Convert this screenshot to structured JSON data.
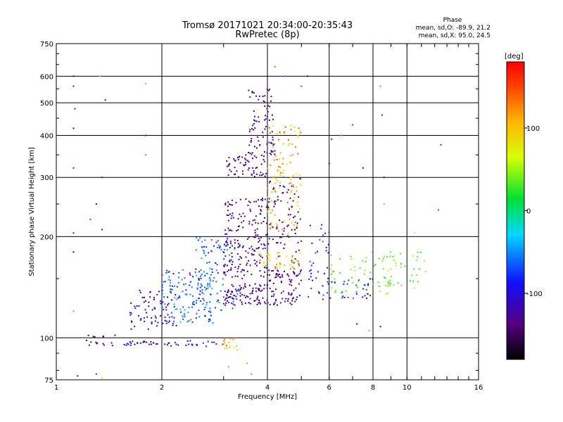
{
  "chart_data": {
    "type": "scatter",
    "title": "Tromsø 20171021 20:34:00-20:35:43",
    "subtitle": "RwPretec (8p)",
    "xlabel": "Frequency [MHz]",
    "ylabel": "Stationary phase Virtual Height [km]",
    "x_scale": "log",
    "y_scale": "log",
    "xlim": [
      1,
      16
    ],
    "ylim": [
      75,
      750
    ],
    "x_ticks": [
      1,
      2,
      4,
      6,
      8,
      10,
      16
    ],
    "x_tick_labels": [
      "1",
      "2",
      "4",
      "6",
      "8",
      "10",
      "16"
    ],
    "y_ticks": [
      75,
      100,
      200,
      300,
      400,
      500,
      600,
      750
    ],
    "y_tick_labels": [
      "75",
      "100",
      "200",
      "300",
      "400",
      "500",
      "600",
      "750"
    ],
    "grid": true,
    "stats": {
      "title": "Phase",
      "line1": "mean, sd,O: -89.9, 21.2",
      "line2": "mean, sd,X: 95.0, 24.5"
    },
    "colorbar": {
      "label": "[deg]",
      "range": [
        -180,
        180
      ],
      "ticks": [
        100,
        0,
        -100
      ],
      "tick_labels": [
        "100",
        "0",
        "-100"
      ]
    },
    "clusters": [
      {
        "x": [
          1.2,
          1.5
        ],
        "y": [
          94,
          102
        ],
        "phase": [
          -160,
          -70
        ],
        "n": 16
      },
      {
        "x": [
          1.55,
          1.95
        ],
        "y": [
          95,
          98
        ],
        "phase": [
          -130,
          -90
        ],
        "n": 24
      },
      {
        "x": [
          2.0,
          3.0
        ],
        "y": [
          94,
          98
        ],
        "phase": [
          -140,
          -70
        ],
        "n": 24
      },
      {
        "x": [
          3.0,
          3.3
        ],
        "y": [
          92,
          100
        ],
        "phase": [
          60,
          160
        ],
        "n": 16
      },
      {
        "x": [
          1.6,
          2.2
        ],
        "y": [
          105,
          140
        ],
        "phase": [
          -130,
          -90
        ],
        "n": 70
      },
      {
        "x": [
          2.0,
          2.8
        ],
        "y": [
          110,
          160
        ],
        "phase": [
          -90,
          -30
        ],
        "n": 140
      },
      {
        "x": [
          2.5,
          3.3
        ],
        "y": [
          120,
          200
        ],
        "phase": [
          -90,
          -40
        ],
        "n": 100
      },
      {
        "x": [
          3.0,
          4.0
        ],
        "y": [
          125,
          145
        ],
        "phase": [
          -150,
          -110
        ],
        "n": 90
      },
      {
        "x": [
          4.0,
          5.0
        ],
        "y": [
          125,
          160
        ],
        "phase": [
          -150,
          -110
        ],
        "n": 80
      },
      {
        "x": [
          3.0,
          4.0
        ],
        "y": [
          150,
          260
        ],
        "phase": [
          -150,
          -110
        ],
        "n": 180
      },
      {
        "x": [
          3.0,
          4.0
        ],
        "y": [
          300,
          350
        ],
        "phase": [
          -150,
          -110
        ],
        "n": 60
      },
      {
        "x": [
          3.5,
          4.2
        ],
        "y": [
          350,
          550
        ],
        "phase": [
          -150,
          -110
        ],
        "n": 80
      },
      {
        "x": [
          4.0,
          5.0
        ],
        "y": [
          200,
          430
        ],
        "phase": [
          60,
          150
        ],
        "n": 110
      },
      {
        "x": [
          4.0,
          5.0
        ],
        "y": [
          150,
          300
        ],
        "phase": [
          -150,
          -110
        ],
        "n": 80
      },
      {
        "x": [
          3.8,
          5.0
        ],
        "y": [
          160,
          180
        ],
        "phase": [
          60,
          160
        ],
        "n": 40
      },
      {
        "x": [
          5.2,
          6.0
        ],
        "y": [
          130,
          220
        ],
        "phase": [
          -110,
          -60
        ],
        "n": 40
      },
      {
        "x": [
          6.0,
          9.0
        ],
        "y": [
          135,
          180
        ],
        "phase": [
          20,
          60
        ],
        "n": 60
      },
      {
        "x": [
          6.0,
          8.0
        ],
        "y": [
          130,
          150
        ],
        "phase": [
          -120,
          -50
        ],
        "n": 30
      },
      {
        "x": [
          8.5,
          11.5
        ],
        "y": [
          140,
          180
        ],
        "phase": [
          20,
          60
        ],
        "n": 35
      }
    ],
    "scattered_points": [
      {
        "x": 1.12,
        "y": 600,
        "phase": -130
      },
      {
        "x": 1.12,
        "y": 560,
        "phase": -110
      },
      {
        "x": 1.13,
        "y": 480,
        "phase": -80
      },
      {
        "x": 1.12,
        "y": 420,
        "phase": -150
      },
      {
        "x": 1.12,
        "y": 320,
        "phase": -80
      },
      {
        "x": 1.12,
        "y": 205,
        "phase": -80
      },
      {
        "x": 1.12,
        "y": 180,
        "phase": -150
      },
      {
        "x": 1.12,
        "y": 120,
        "phase": 20
      },
      {
        "x": 1.33,
        "y": 600,
        "phase": 100
      },
      {
        "x": 1.38,
        "y": 510,
        "phase": -130
      },
      {
        "x": 1.35,
        "y": 300,
        "phase": -110
      },
      {
        "x": 1.3,
        "y": 250,
        "phase": -150
      },
      {
        "x": 1.35,
        "y": 210,
        "phase": -110
      },
      {
        "x": 1.25,
        "y": 225,
        "phase": -60
      },
      {
        "x": 1.8,
        "y": 570,
        "phase": 120
      },
      {
        "x": 1.8,
        "y": 400,
        "phase": -80
      },
      {
        "x": 1.8,
        "y": 350,
        "phase": 140
      },
      {
        "x": 4.2,
        "y": 640,
        "phase": 140
      },
      {
        "x": 4.5,
        "y": 600,
        "phase": 150
      },
      {
        "x": 5.0,
        "y": 560,
        "phase": -60
      },
      {
        "x": 5.2,
        "y": 600,
        "phase": -150
      },
      {
        "x": 6.0,
        "y": 330,
        "phase": -110
      },
      {
        "x": 6.1,
        "y": 390,
        "phase": -110
      },
      {
        "x": 6.5,
        "y": 400,
        "phase": 140
      },
      {
        "x": 7.0,
        "y": 430,
        "phase": 170
      },
      {
        "x": 7.5,
        "y": 320,
        "phase": -90
      },
      {
        "x": 8.4,
        "y": 560,
        "phase": 130
      },
      {
        "x": 8.5,
        "y": 460,
        "phase": -80
      },
      {
        "x": 8.6,
        "y": 300,
        "phase": -150
      },
      {
        "x": 8.6,
        "y": 250,
        "phase": 40
      },
      {
        "x": 12.3,
        "y": 240,
        "phase": 170
      },
      {
        "x": 12.5,
        "y": 375,
        "phase": -70
      },
      {
        "x": 7.2,
        "y": 110,
        "phase": -120
      },
      {
        "x": 7.8,
        "y": 105,
        "phase": 120
      },
      {
        "x": 8.4,
        "y": 108,
        "phase": -100
      },
      {
        "x": 3.5,
        "y": 84,
        "phase": 120
      },
      {
        "x": 3.6,
        "y": 78,
        "phase": 130
      },
      {
        "x": 3.1,
        "y": 82,
        "phase": 120
      },
      {
        "x": 1.3,
        "y": 78,
        "phase": -70
      },
      {
        "x": 1.15,
        "y": 77,
        "phase": -140
      },
      {
        "x": 1.35,
        "y": 76,
        "phase": 60
      },
      {
        "x": 2.5,
        "y": 160,
        "phase": -150
      },
      {
        "x": 2.2,
        "y": 130,
        "phase": -40
      },
      {
        "x": 10.5,
        "y": 205,
        "phase": 60
      }
    ]
  }
}
